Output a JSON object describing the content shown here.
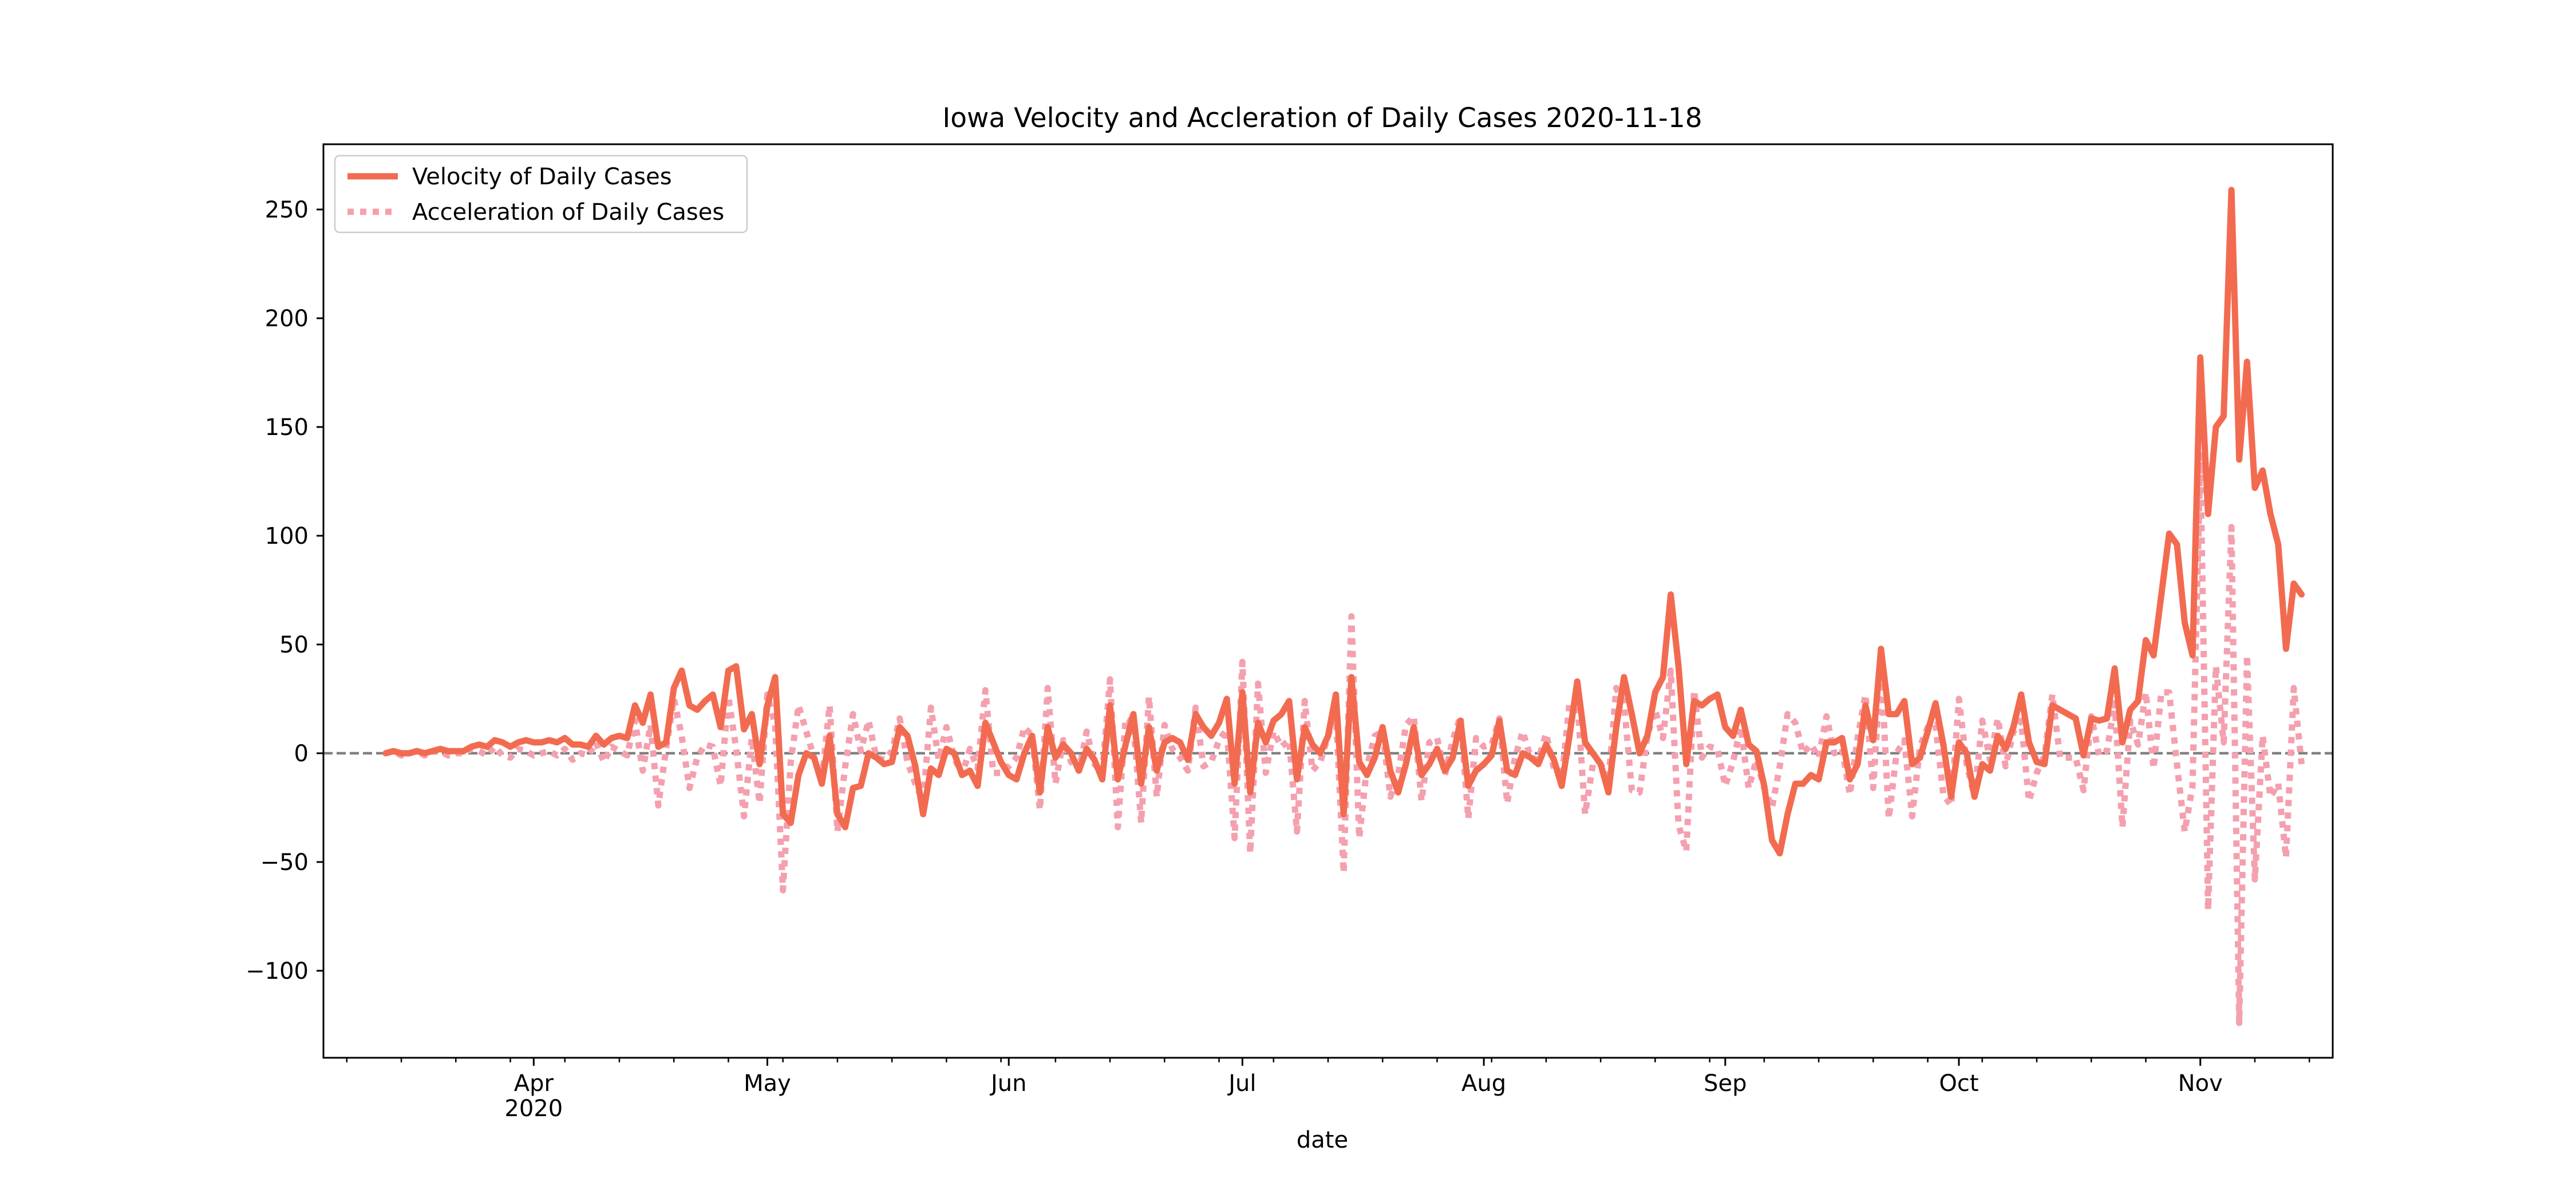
{
  "chart_data": {
    "type": "line",
    "title": "Iowa Velocity and Accleration of Daily Cases 2020-11-18",
    "xlabel": "date",
    "ylabel": "",
    "ylim": [
      -140,
      280
    ],
    "xlim": [
      "2020-03-05",
      "2020-11-18"
    ],
    "yticks": [
      -100,
      -50,
      0,
      50,
      100,
      150,
      200,
      250
    ],
    "ytick_labels": [
      "−100",
      "−50",
      "0",
      "50",
      "100",
      "150",
      "200",
      "250"
    ],
    "xticks": [
      {
        "date": "2020-04-01",
        "label": "Apr",
        "sublabel": "2020"
      },
      {
        "date": "2020-05-01",
        "label": "May",
        "sublabel": ""
      },
      {
        "date": "2020-06-01",
        "label": "Jun",
        "sublabel": ""
      },
      {
        "date": "2020-07-01",
        "label": "Jul",
        "sublabel": ""
      },
      {
        "date": "2020-08-01",
        "label": "Aug",
        "sublabel": ""
      },
      {
        "date": "2020-09-01",
        "label": "Sep",
        "sublabel": ""
      },
      {
        "date": "2020-10-01",
        "label": "Oct",
        "sublabel": ""
      },
      {
        "date": "2020-11-01",
        "label": "Nov",
        "sublabel": ""
      }
    ],
    "grid": false,
    "legend_position": "top-left",
    "zero_line": {
      "y": 0,
      "color": "#808080",
      "style": "dashed"
    },
    "x_dates": {
      "start": "2020-03-13",
      "end": "2020-11-18",
      "step_days": 1
    },
    "series": [
      {
        "name": "Velocity of Daily Cases",
        "color": "#F26B50",
        "style": "solid",
        "values": [
          0,
          1,
          0,
          0,
          1,
          0,
          1,
          2,
          1,
          1,
          1,
          3,
          4,
          3,
          6,
          5,
          3,
          5,
          6,
          5,
          5,
          6,
          5,
          7,
          4,
          4,
          3,
          8,
          4,
          7,
          8,
          7,
          22,
          14,
          27,
          3,
          5,
          30,
          38,
          22,
          20,
          24,
          27,
          12,
          38,
          40,
          11,
          18,
          -5,
          22,
          35,
          -28,
          -32,
          -10,
          0,
          -2,
          -14,
          8,
          -28,
          -34,
          -16,
          -15,
          0,
          -2,
          -5,
          -4,
          12,
          8,
          -6,
          -28,
          -7,
          -10,
          2,
          0,
          -10,
          -8,
          -15,
          14,
          5,
          -4,
          -10,
          -12,
          0,
          8,
          -18,
          12,
          -2,
          4,
          0,
          -8,
          2,
          -3,
          -12,
          22,
          -12,
          4,
          18,
          -14,
          12,
          -8,
          5,
          7,
          5,
          -3,
          18,
          12,
          8,
          14,
          25,
          -14,
          28,
          -18,
          14,
          5,
          15,
          18,
          24,
          -12,
          12,
          4,
          0,
          8,
          27,
          -28,
          35,
          -4,
          -10,
          -2,
          12,
          -8,
          -18,
          -5,
          12,
          -10,
          -5,
          2,
          -8,
          -2,
          15,
          -15,
          -8,
          -5,
          -1,
          15,
          -8,
          -10,
          0,
          -2,
          -5,
          4,
          -3,
          -15,
          8,
          33,
          5,
          0,
          -5,
          -18,
          12,
          35,
          18,
          0,
          8,
          28,
          35,
          73,
          40,
          -5,
          24,
          22,
          25,
          27,
          12,
          8,
          20,
          4,
          1,
          -15,
          -40,
          -46,
          -28,
          -14,
          -14,
          -10,
          -12,
          5,
          5,
          7,
          -12,
          -5,
          22,
          6,
          48,
          18,
          18,
          24,
          -5,
          -2,
          10,
          23,
          4,
          -20,
          5,
          0,
          -20,
          -5,
          -8,
          8,
          2,
          12,
          27,
          5,
          -4,
          -5,
          22,
          20,
          18,
          16,
          -1,
          16,
          15,
          16,
          39,
          5,
          20,
          24,
          52,
          45,
          73,
          101,
          96,
          60,
          45,
          182,
          110,
          150,
          155,
          259,
          135,
          180,
          122,
          130,
          110,
          96,
          48,
          78,
          73
        ]
      },
      {
        "name": "Acceleration of Daily Cases",
        "color": "#F4A0AE",
        "style": "dotted",
        "values": [
          0,
          1,
          -1,
          0,
          1,
          -1,
          1,
          1,
          -1,
          0,
          0,
          2,
          1,
          -1,
          3,
          -1,
          -2,
          2,
          1,
          -1,
          0,
          1,
          -1,
          2,
          -3,
          0,
          -1,
          5,
          -4,
          3,
          1,
          -1,
          15,
          -8,
          13,
          -24,
          2,
          25,
          8,
          -16,
          -2,
          4,
          3,
          -15,
          26,
          2,
          -29,
          7,
          -23,
          27,
          13,
          -63,
          -4,
          22,
          10,
          -2,
          -12,
          22,
          -36,
          -6,
          18,
          1,
          15,
          -2,
          -3,
          1,
          16,
          -4,
          -14,
          -22,
          21,
          -3,
          12,
          -2,
          -10,
          2,
          -7,
          29,
          -9,
          -9,
          -6,
          -2,
          12,
          8,
          -26,
          30,
          -14,
          6,
          -4,
          -8,
          10,
          -5,
          -9,
          34,
          -34,
          16,
          14,
          -32,
          26,
          -20,
          13,
          2,
          -2,
          -8,
          21,
          -6,
          -4,
          6,
          11,
          -39,
          42,
          -46,
          32,
          -9,
          10,
          3,
          6,
          -36,
          24,
          -8,
          -4,
          8,
          19,
          -55,
          63,
          -39,
          -6,
          8,
          10,
          -20,
          -10,
          13,
          17,
          -22,
          5,
          7,
          -10,
          6,
          17,
          -30,
          7,
          3,
          4,
          16,
          -23,
          -2,
          10,
          -2,
          -3,
          9,
          -7,
          -12,
          23,
          25,
          -28,
          -5,
          -5,
          -13,
          30,
          23,
          -17,
          -18,
          8,
          20,
          7,
          38,
          -33,
          -45,
          29,
          -2,
          3,
          2,
          -15,
          -4,
          12,
          -16,
          -3,
          -16,
          -25,
          -6,
          18,
          14,
          0,
          4,
          -2,
          17,
          0,
          2,
          -19,
          7,
          27,
          -16,
          42,
          -30,
          0,
          6,
          -29,
          3,
          12,
          13,
          -19,
          -24,
          25,
          -5,
          -20,
          15,
          -3,
          16,
          -6,
          10,
          15,
          -22,
          -9,
          -1,
          27,
          -2,
          -2,
          -2,
          -17,
          17,
          -1,
          1,
          23,
          -34,
          15,
          4,
          28,
          -7,
          28,
          28,
          -5,
          -36,
          -15,
          137,
          -72,
          40,
          5,
          104,
          -124,
          45,
          -58,
          8,
          -20,
          -14,
          -48,
          30,
          -5
        ]
      }
    ]
  }
}
